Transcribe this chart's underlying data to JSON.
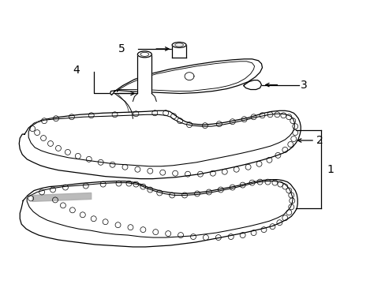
{
  "background_color": "#ffffff",
  "line_color": "#000000",
  "label_color": "#000000",
  "fig_width": 4.89,
  "fig_height": 3.6,
  "dpi": 100,
  "label_fontsize": 10,
  "lw": 0.9
}
